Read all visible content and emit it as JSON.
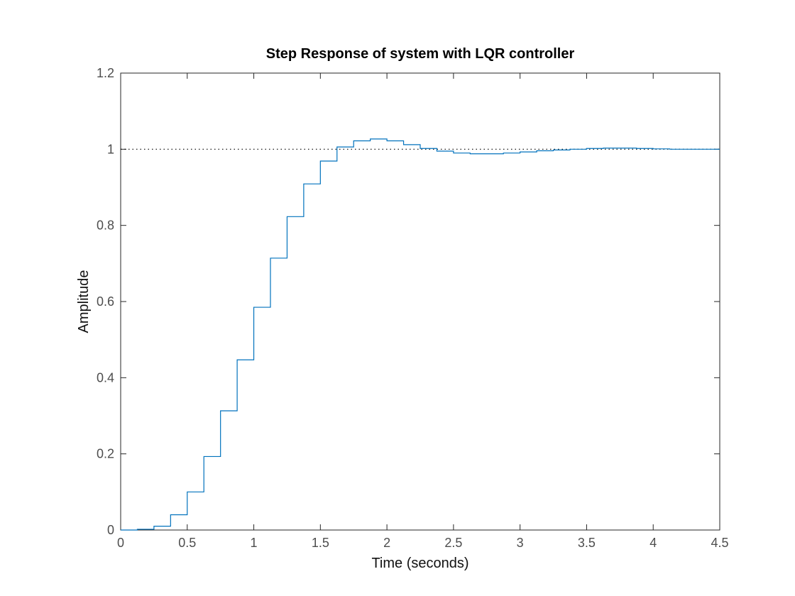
{
  "chart_data": {
    "type": "line",
    "title": "Step Response of system with LQR controller",
    "xlabel": "Time (seconds)",
    "ylabel": "Amplitude",
    "xlim": [
      0,
      4.5
    ],
    "ylim": [
      0,
      1.2
    ],
    "xticks": [
      "0",
      "0.5",
      "1",
      "1.5",
      "2",
      "2.5",
      "3",
      "3.5",
      "4",
      "4.5"
    ],
    "yticks": [
      "0",
      "0.2",
      "0.4",
      "0.6",
      "0.8",
      "1",
      "1.2"
    ],
    "grid": false,
    "legend": "none",
    "reference_line": {
      "y": 1,
      "style": "dotted",
      "color": "#000000"
    },
    "series": [
      {
        "style": "stairs",
        "color": "#0072BD",
        "x": [
          0,
          0.125,
          0.25,
          0.375,
          0.5,
          0.625,
          0.75,
          0.875,
          1.0,
          1.125,
          1.25,
          1.375,
          1.5,
          1.625,
          1.75,
          1.875,
          2.0,
          2.125,
          2.25,
          2.375,
          2.5,
          2.625,
          2.75,
          2.875,
          3.0,
          3.125,
          3.25,
          3.375,
          3.5,
          3.625,
          3.75,
          3.875,
          4.0,
          4.125,
          4.25,
          4.375,
          4.5
        ],
        "y": [
          0,
          0.002,
          0.01,
          0.04,
          0.1,
          0.193,
          0.313,
          0.447,
          0.585,
          0.714,
          0.823,
          0.909,
          0.969,
          1.006,
          1.022,
          1.027,
          1.022,
          1.012,
          1.002,
          0.995,
          0.99,
          0.988,
          0.988,
          0.99,
          0.993,
          0.996,
          0.998,
          1.0,
          1.002,
          1.003,
          1.003,
          1.002,
          1.001,
          1.0,
          1.0,
          1.0,
          1.0
        ]
      }
    ]
  }
}
